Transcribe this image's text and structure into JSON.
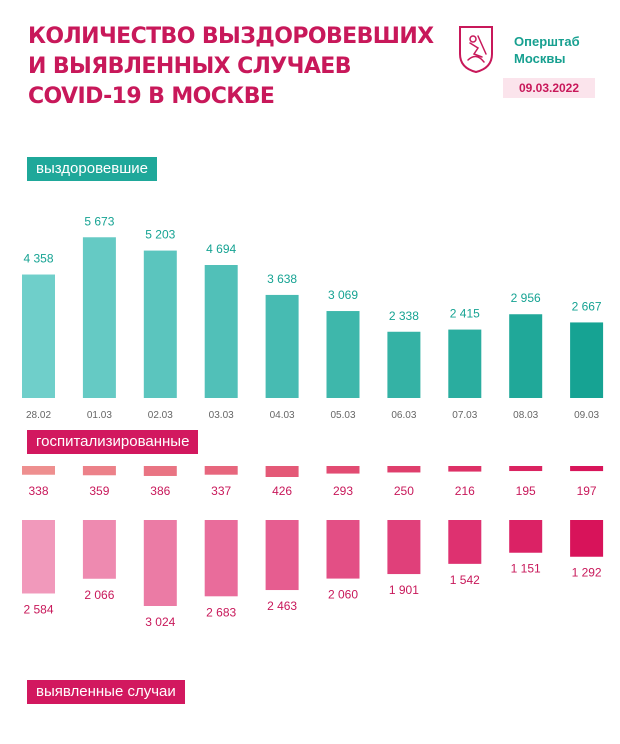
{
  "header": {
    "title_lines": [
      "Количество выздоровевших",
      "и выявленных случаев",
      "COVID-19 в Москве"
    ],
    "org_lines": [
      "Оперштаб",
      "Москвы"
    ],
    "date": "09.03.2022",
    "logo_icon": "moscow-coat-of-arms-icon"
  },
  "labels": {
    "recovered": "выздоровевшие",
    "hospitalized": "госпитализированные",
    "cases": "выявленные случаи"
  },
  "colors": {
    "brand_red": "#c8185a",
    "brand_teal": "#1fa89a",
    "recovered_light": "#6fcfca",
    "recovered_dark": "#16a393",
    "hospitalized_light": "#ee8f8f",
    "hospitalized_dark": "#d8155a",
    "cases_light": "#f199bb",
    "cases_dark": "#d8135a",
    "value_red": "#c8185a"
  },
  "chart_data": [
    {
      "type": "bar",
      "name": "recovered",
      "categories": [
        "28.02",
        "01.03",
        "02.03",
        "03.03",
        "04.03",
        "05.03",
        "06.03",
        "07.03",
        "08.03",
        "09.03"
      ],
      "values": [
        4358,
        5673,
        5203,
        4694,
        3638,
        3069,
        2338,
        2415,
        2956,
        2667
      ],
      "value_labels": [
        "4 358",
        "5 673",
        "5 203",
        "4 694",
        "3 638",
        "3 069",
        "2 338",
        "2 415",
        "2 956",
        "2 667"
      ]
    },
    {
      "type": "bar",
      "name": "hospitalized",
      "categories": [
        "28.02",
        "01.03",
        "02.03",
        "03.03",
        "04.03",
        "05.03",
        "06.03",
        "07.03",
        "08.03",
        "09.03"
      ],
      "values": [
        338,
        359,
        386,
        337,
        426,
        293,
        250,
        216,
        195,
        197
      ],
      "value_labels": [
        "338",
        "359",
        "386",
        "337",
        "426",
        "293",
        "250",
        "216",
        "195",
        "197"
      ]
    },
    {
      "type": "bar",
      "name": "cases",
      "categories": [
        "28.02",
        "01.03",
        "02.03",
        "03.03",
        "04.03",
        "05.03",
        "06.03",
        "07.03",
        "08.03",
        "09.03"
      ],
      "values": [
        2584,
        2066,
        3024,
        2683,
        2463,
        2060,
        1901,
        1542,
        1151,
        1292
      ],
      "value_labels": [
        "2 584",
        "2 066",
        "3 024",
        "2 683",
        "2 463",
        "2 060",
        "1 901",
        "1 542",
        "1 151",
        "1 292"
      ]
    }
  ]
}
